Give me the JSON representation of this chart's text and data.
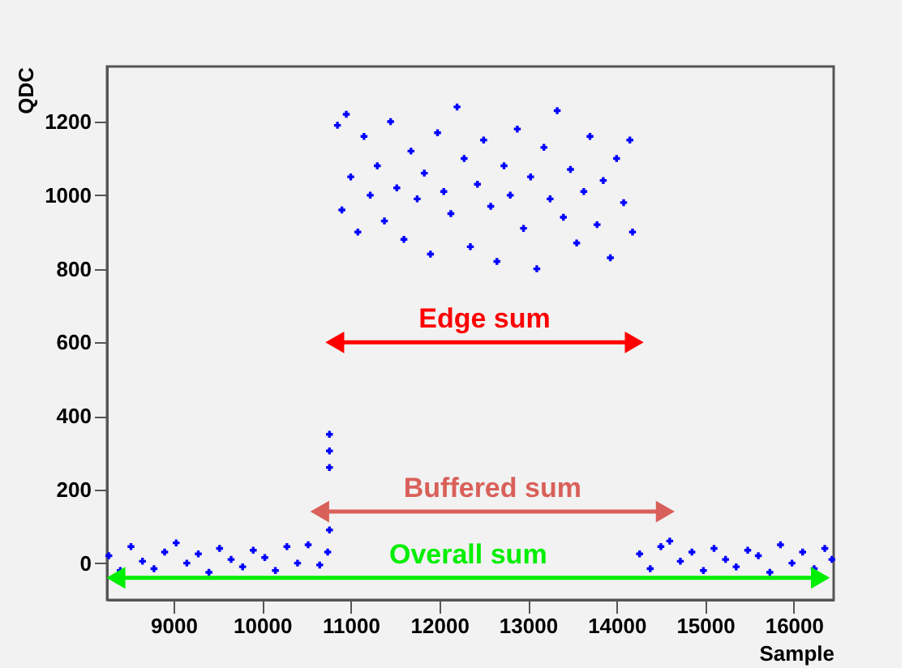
{
  "chart_data": {
    "type": "scatter",
    "xlabel": "Sample",
    "ylabel": "QDC",
    "xlim": [
      8250,
      16450
    ],
    "ylim": [
      -100,
      1350
    ],
    "xticks": [
      9000,
      10000,
      11000,
      12000,
      13000,
      14000,
      15000,
      16000
    ],
    "yticks": [
      0,
      200,
      400,
      600,
      800,
      1000,
      1200
    ],
    "grid": false,
    "legend": false,
    "marker": "cross",
    "series": [
      {
        "color": "#0000ff",
        "x": [
          8270,
          8400,
          8520,
          8650,
          8780,
          8900,
          9030,
          9150,
          9280,
          9400,
          9520,
          9650,
          9780,
          9900,
          10030,
          10150,
          10280,
          10400,
          10520,
          10650,
          10740,
          10760,
          10760,
          10760,
          10760,
          10850,
          10900,
          10950,
          11000,
          11080,
          11150,
          11220,
          11300,
          11380,
          11450,
          11520,
          11600,
          11680,
          11750,
          11830,
          11900,
          11980,
          12050,
          12130,
          12200,
          12280,
          12350,
          12430,
          12500,
          12580,
          12650,
          12730,
          12800,
          12880,
          12950,
          13030,
          13100,
          13180,
          13250,
          13330,
          13400,
          13480,
          13550,
          13630,
          13700,
          13780,
          13850,
          13930,
          14000,
          14080,
          14150,
          14180,
          14260,
          14380,
          14500,
          14600,
          14720,
          14850,
          14980,
          15100,
          15230,
          15350,
          15480,
          15600,
          15730,
          15850,
          15980,
          16100,
          16230,
          16350,
          16430
        ],
        "values": [
          20,
          -20,
          45,
          5,
          -15,
          30,
          55,
          0,
          25,
          -25,
          40,
          10,
          -10,
          35,
          15,
          -20,
          45,
          0,
          50,
          -5,
          30,
          90,
          260,
          305,
          350,
          1190,
          960,
          1220,
          1050,
          900,
          1160,
          1000,
          1080,
          930,
          1200,
          1020,
          880,
          1120,
          990,
          1060,
          840,
          1170,
          1010,
          950,
          1240,
          1100,
          860,
          1030,
          1150,
          970,
          820,
          1080,
          1000,
          1180,
          910,
          1050,
          800,
          1130,
          990,
          1230,
          940,
          1070,
          870,
          1010,
          1160,
          920,
          1040,
          830,
          1100,
          980,
          1150,
          900,
          25,
          -15,
          45,
          60,
          5,
          30,
          -20,
          40,
          10,
          -10,
          35,
          20,
          -25,
          50,
          0,
          30,
          -15,
          40,
          10
        ]
      },
      {
        "type": "line",
        "name": "Edge sum",
        "color": "#ff0000",
        "marker": "triangle",
        "x": [
          10820,
          14200
        ],
        "values": [
          600,
          600
        ]
      },
      {
        "type": "line",
        "name": "Buffered sum",
        "color": "#d9605a",
        "marker": "triangle",
        "x": [
          10650,
          14550
        ],
        "values": [
          140,
          140
        ]
      },
      {
        "type": "line",
        "name": "Overall sum",
        "color": "#00ee00",
        "marker": "triangle",
        "x": [
          8350,
          16300
        ],
        "values": [
          -40,
          -40
        ]
      }
    ]
  }
}
